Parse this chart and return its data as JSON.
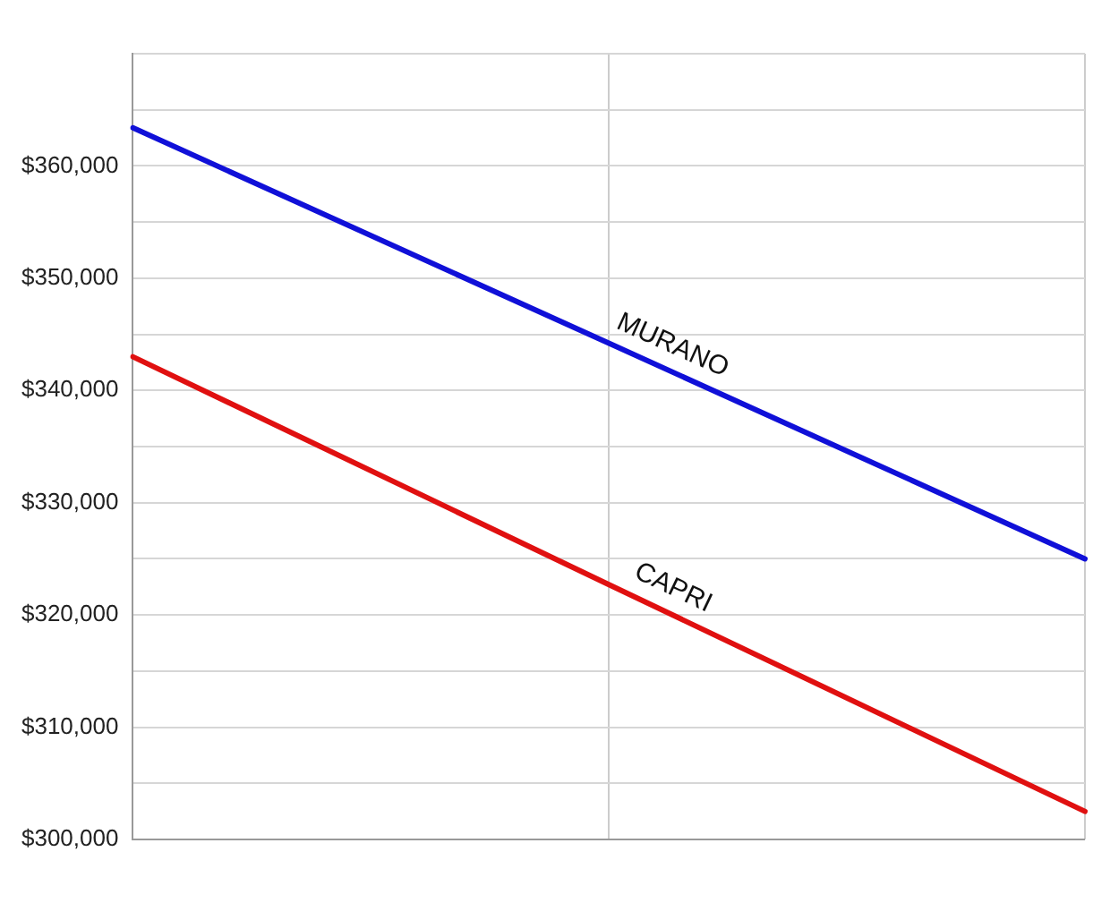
{
  "chart_data": {
    "type": "line",
    "categories": [
      null,
      null,
      null
    ],
    "ylim": [
      300000,
      370000
    ],
    "yticks": [
      {
        "value": 300000,
        "label": "$300,000"
      },
      {
        "value": 305000,
        "label": null
      },
      {
        "value": 310000,
        "label": "$310,000"
      },
      {
        "value": 315000,
        "label": null
      },
      {
        "value": 320000,
        "label": "$320,000"
      },
      {
        "value": 325000,
        "label": null
      },
      {
        "value": 330000,
        "label": "$330,000"
      },
      {
        "value": 335000,
        "label": null
      },
      {
        "value": 340000,
        "label": "$340,000"
      },
      {
        "value": 345000,
        "label": null
      },
      {
        "value": 350000,
        "label": "$350,000"
      },
      {
        "value": 355000,
        "label": null
      },
      {
        "value": 360000,
        "label": "$360,000"
      },
      {
        "value": 365000,
        "label": null
      },
      {
        "value": 370000,
        "label": null
      }
    ],
    "series": [
      {
        "name": "MURANO",
        "color": "#1010d8",
        "values": [
          363400,
          344200,
          325000
        ]
      },
      {
        "name": "CAPRI",
        "color": "#e01010",
        "values": [
          343000,
          322700,
          302500
        ]
      }
    ],
    "grid": true,
    "legend": false,
    "marker": "none",
    "line_style": "solid",
    "tick_labels": "y"
  }
}
